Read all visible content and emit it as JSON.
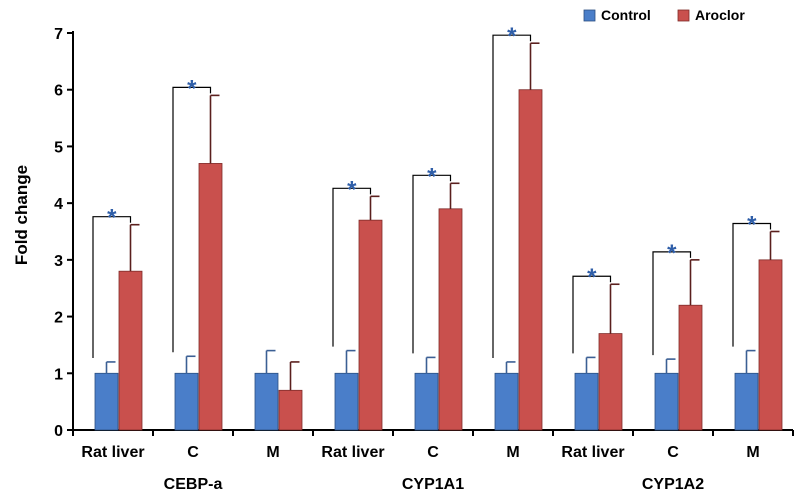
{
  "chart_data": {
    "type": "bar",
    "ylabel": "Fold change",
    "ylim": [
      0,
      7
    ],
    "yticks": [
      "0",
      "1",
      "2",
      "3",
      "4",
      "5",
      "6",
      "7"
    ],
    "categories": [
      "Rat liver",
      "C",
      "M",
      "Rat liver",
      "C",
      "M",
      "Rat liver",
      "C",
      "M"
    ],
    "groups": [
      "CEBP-a",
      "CYP1A1",
      "CYP1A2"
    ],
    "group_sizes": [
      3,
      3,
      3
    ],
    "series": [
      {
        "name": "Control",
        "color": "#4a7ec9",
        "values": [
          1,
          1,
          1,
          1,
          1,
          1,
          1,
          1,
          1
        ],
        "errors": [
          0.2,
          0.3,
          0.4,
          0.4,
          0.28,
          0.2,
          0.28,
          0.25,
          0.4
        ]
      },
      {
        "name": "Aroclor",
        "color": "#c9504d",
        "values": [
          2.8,
          4.7,
          0.7,
          3.7,
          3.9,
          6.0,
          1.7,
          2.2,
          3.0
        ],
        "errors": [
          0.82,
          1.2,
          0.5,
          0.42,
          0.45,
          0.82,
          0.87,
          0.8,
          0.5
        ]
      }
    ],
    "significance_marker": "*",
    "significant": [
      true,
      true,
      false,
      true,
      true,
      true,
      true,
      true,
      true
    ],
    "star_color": "#2f5ea8",
    "legend_position": "top-right",
    "grid": false
  }
}
